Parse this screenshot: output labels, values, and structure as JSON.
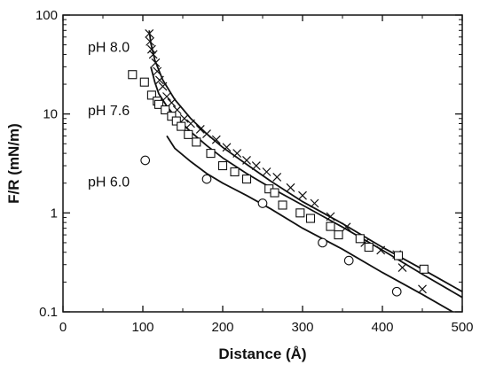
{
  "chart_data": {
    "type": "scatter",
    "title": "",
    "xlabel": "Distance (Å)",
    "ylabel": "F/R (mN/m)",
    "xlim": [
      0,
      500
    ],
    "ylim": [
      0.1,
      100
    ],
    "yscale": "log",
    "grid": false,
    "legend": "none",
    "x_ticks": [
      0,
      100,
      200,
      300,
      400,
      500
    ],
    "x_tick_labels": [
      "0",
      "100",
      "200",
      "300",
      "400",
      "500"
    ],
    "y_ticks": [
      0.1,
      1,
      10,
      100
    ],
    "y_tick_labels": [
      "0.1",
      "1",
      "10",
      "100"
    ],
    "annotations": [
      {
        "text": "pH 8.0",
        "x": 40,
        "y": 48
      },
      {
        "text": "pH 7.6",
        "x": 40,
        "y": 11
      },
      {
        "text": "pH 6.0",
        "x": 40,
        "y": 2.1
      }
    ],
    "series": [
      {
        "marker": "x",
        "color": "#111111",
        "points": [
          [
            108,
            65
          ],
          [
            109,
            54
          ],
          [
            111,
            45
          ],
          [
            113,
            40
          ],
          [
            116,
            33
          ],
          [
            118,
            27
          ],
          [
            121,
            22
          ],
          [
            125,
            19
          ],
          [
            130,
            15
          ],
          [
            136,
            13
          ],
          [
            143,
            11
          ],
          [
            152,
            9
          ],
          [
            160,
            8
          ],
          [
            172,
            7
          ],
          [
            180,
            6.3
          ],
          [
            192,
            5.5
          ],
          [
            205,
            4.6
          ],
          [
            218,
            4.0
          ],
          [
            230,
            3.4
          ],
          [
            242,
            3.0
          ],
          [
            255,
            2.6
          ],
          [
            268,
            2.3
          ],
          [
            285,
            1.8
          ],
          [
            300,
            1.5
          ],
          [
            315,
            1.25
          ],
          [
            335,
            0.92
          ],
          [
            355,
            0.72
          ],
          [
            378,
            0.5
          ],
          [
            398,
            0.42
          ],
          [
            418,
            0.38
          ],
          [
            425,
            0.28
          ],
          [
            450,
            0.17
          ]
        ],
        "fit": [
          [
            108,
            70
          ],
          [
            110,
            52
          ],
          [
            115,
            35
          ],
          [
            125,
            22
          ],
          [
            140,
            14
          ],
          [
            160,
            9
          ],
          [
            180,
            6.3
          ],
          [
            200,
            4.6
          ],
          [
            230,
            3.1
          ],
          [
            260,
            2.1
          ],
          [
            300,
            1.3
          ],
          [
            350,
            0.78
          ],
          [
            400,
            0.45
          ],
          [
            450,
            0.27
          ],
          [
            500,
            0.16
          ]
        ]
      },
      {
        "marker": "square",
        "color": "#111111",
        "points": [
          [
            87,
            25
          ],
          [
            102,
            21
          ],
          [
            111,
            15.5
          ],
          [
            118,
            13.5
          ],
          [
            120,
            12.5
          ],
          [
            128,
            11
          ],
          [
            136,
            9.5
          ],
          [
            142,
            8.5
          ],
          [
            148,
            7.5
          ],
          [
            157,
            6.2
          ],
          [
            167,
            5.2
          ],
          [
            185,
            4.0
          ],
          [
            200,
            3.0
          ],
          [
            215,
            2.6
          ],
          [
            230,
            2.2
          ],
          [
            258,
            1.75
          ],
          [
            265,
            1.6
          ],
          [
            275,
            1.2
          ],
          [
            297,
            1.0
          ],
          [
            310,
            0.88
          ],
          [
            335,
            0.73
          ],
          [
            345,
            0.6
          ],
          [
            372,
            0.55
          ],
          [
            383,
            0.45
          ],
          [
            420,
            0.37
          ],
          [
            452,
            0.27
          ]
        ],
        "fit": [
          [
            110,
            30
          ],
          [
            115,
            21
          ],
          [
            120,
            16
          ],
          [
            130,
            12
          ],
          [
            140,
            9.5
          ],
          [
            160,
            6.6
          ],
          [
            180,
            4.8
          ],
          [
            200,
            3.6
          ],
          [
            230,
            2.5
          ],
          [
            260,
            1.8
          ],
          [
            300,
            1.2
          ],
          [
            350,
            0.72
          ],
          [
            400,
            0.42
          ],
          [
            450,
            0.24
          ],
          [
            500,
            0.14
          ]
        ]
      },
      {
        "marker": "circle",
        "color": "#111111",
        "points": [
          [
            103,
            3.4
          ],
          [
            180,
            2.2
          ],
          [
            250,
            1.25
          ],
          [
            325,
            0.5
          ],
          [
            358,
            0.33
          ],
          [
            418,
            0.16
          ]
        ],
        "fit": [
          [
            130,
            6.0
          ],
          [
            140,
            4.5
          ],
          [
            160,
            3.3
          ],
          [
            180,
            2.5
          ],
          [
            200,
            2.0
          ],
          [
            230,
            1.5
          ],
          [
            260,
            1.1
          ],
          [
            300,
            0.7
          ],
          [
            350,
            0.43
          ],
          [
            400,
            0.25
          ],
          [
            450,
            0.15
          ],
          [
            488,
            0.1
          ]
        ]
      }
    ]
  }
}
